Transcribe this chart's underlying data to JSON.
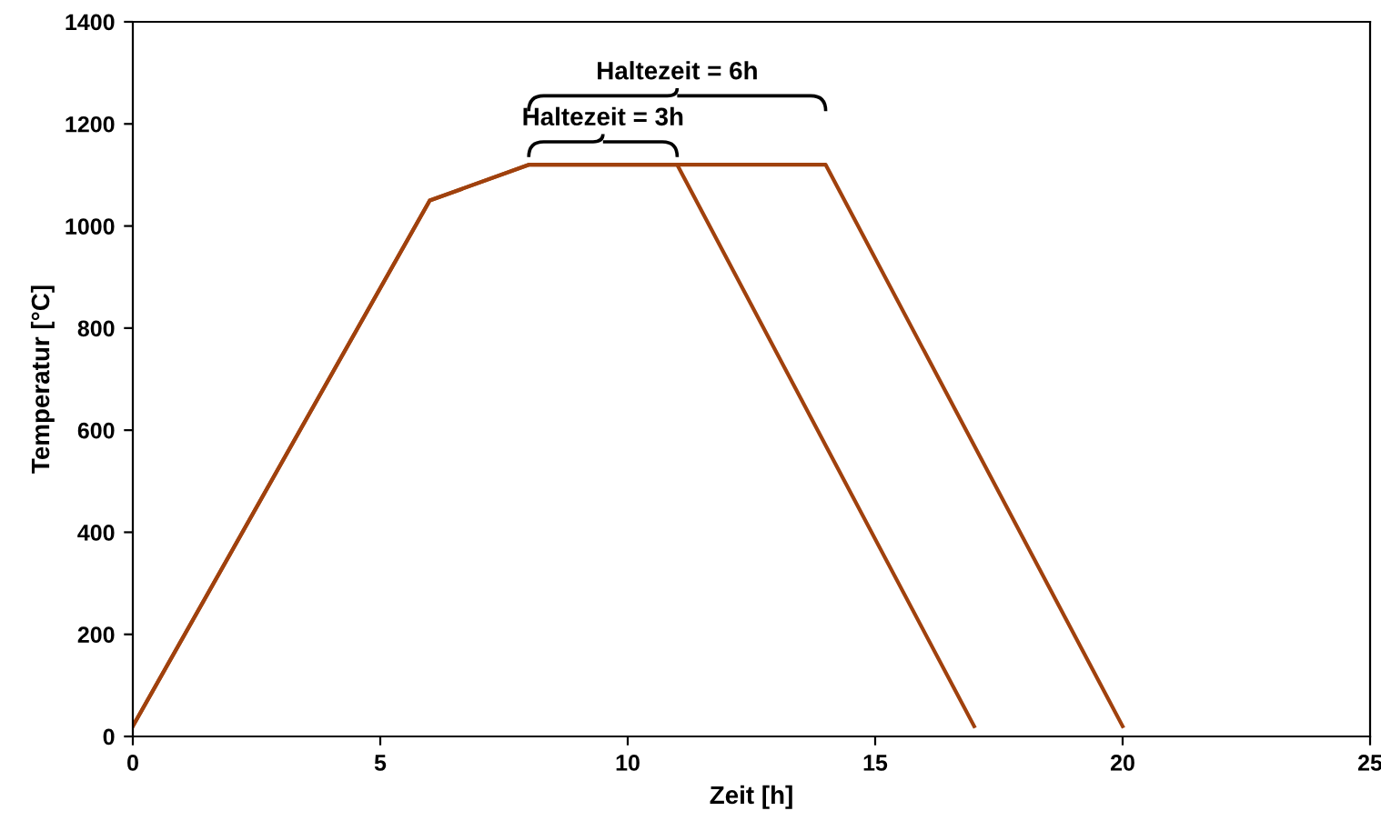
{
  "chart_data": {
    "type": "line",
    "xlabel": "Zeit [h]",
    "ylabel": "Temperatur [°C]",
    "series": [
      {
        "color": "#a0410d",
        "x": [
          0,
          6,
          8,
          11,
          17
        ],
        "values": [
          20,
          1050,
          1120,
          1120,
          20
        ]
      },
      {
        "color": "#a0410d",
        "x": [
          0,
          6,
          8,
          14,
          20
        ],
        "values": [
          20,
          1050,
          1120,
          1120,
          20
        ]
      }
    ],
    "xlim": [
      0,
      25
    ],
    "xticks": [
      0,
      5,
      10,
      15,
      20,
      25
    ],
    "ylim": [
      0,
      1400
    ],
    "yticks": [
      0,
      200,
      400,
      600,
      800,
      1000,
      1200,
      1400
    ],
    "grid": false,
    "legend": false,
    "marker": "none",
    "line_style": "solid",
    "annotations": [
      "Haltezeit = 3h",
      "Haltezeit = 6h"
    ]
  }
}
